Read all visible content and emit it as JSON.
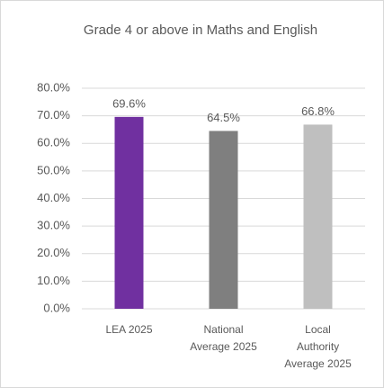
{
  "chart_data": {
    "type": "bar",
    "title": "Grade 4 or above in  Maths and English",
    "categories": [
      "LEA 2025",
      "National Average 2025",
      "Local Authority Average 2025"
    ],
    "values": [
      69.6,
      64.5,
      66.8
    ],
    "value_labels": [
      "69.6%",
      "64.5%",
      "66.8%"
    ],
    "colors": [
      "#7030a0",
      "#7f7f7f",
      "#bfbfbf"
    ],
    "ylim": [
      0,
      80
    ],
    "yticks": [
      {
        "value": 0,
        "label": "0.0%"
      },
      {
        "value": 10,
        "label": "10.0%"
      },
      {
        "value": 20,
        "label": "20.0%"
      },
      {
        "value": 30,
        "label": "30.0%"
      },
      {
        "value": 40,
        "label": "40.0%"
      },
      {
        "value": 50,
        "label": "50.0%"
      },
      {
        "value": 60,
        "label": "60.0%"
      },
      {
        "value": 70,
        "label": "70.0%"
      },
      {
        "value": 80,
        "label": "80.0%"
      }
    ],
    "grid": true
  }
}
